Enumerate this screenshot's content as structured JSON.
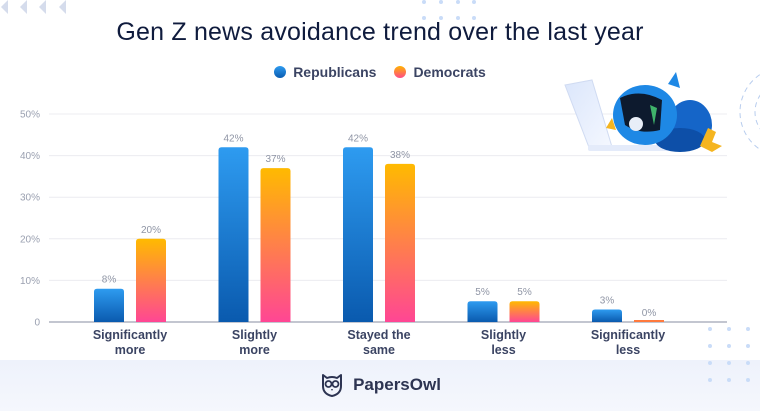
{
  "chart_data": {
    "type": "bar",
    "title": "Gen Z news avoidance trend over the last year",
    "xlabel": "",
    "ylabel": "",
    "categories": [
      [
        "Significantly",
        "more"
      ],
      [
        "Slightly",
        "more"
      ],
      [
        "Stayed the",
        "same"
      ],
      [
        "Slightly",
        "less"
      ],
      [
        "Significantly",
        "less"
      ]
    ],
    "series": [
      {
        "name": "Republicans",
        "values": [
          8,
          42,
          42,
          5,
          3
        ],
        "labels": [
          "8%",
          "42%",
          "42%",
          "5%",
          "3%"
        ],
        "color_top": "#2e9bf0",
        "color_bottom": "#0a5aae"
      },
      {
        "name": "Democrats",
        "values": [
          20,
          37,
          38,
          5,
          0
        ],
        "labels": [
          "20%",
          "37%",
          "38%",
          "5%",
          "0%"
        ],
        "color_top": "#ffba00",
        "color_bottom": "#ff4694"
      }
    ],
    "yticks": [
      "0",
      "10%",
      "20%",
      "30%",
      "40%",
      "50%"
    ],
    "ylim": [
      0,
      50
    ],
    "grid": true,
    "legend_position": "top-center"
  },
  "legend": {
    "items": [
      "Republicans",
      "Democrats"
    ]
  },
  "brand": {
    "name": "PapersOwl"
  }
}
